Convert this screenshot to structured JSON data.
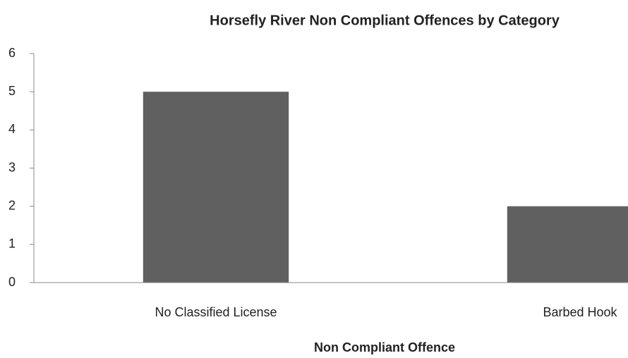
{
  "chart_data": {
    "type": "bar",
    "title": "Horsefly River Non Compliant Offences by Category",
    "x_label": "Non Compliant Offence",
    "categories": [
      "No Classified License",
      "Barbed Hook"
    ],
    "values": [
      5,
      2
    ],
    "color": "#606060",
    "ylim": [
      0,
      6
    ],
    "yticks": [
      0,
      1,
      2,
      3,
      4,
      5,
      6
    ],
    "grid": false
  }
}
